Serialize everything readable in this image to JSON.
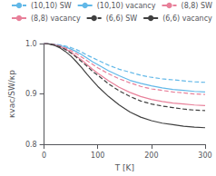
{
  "chart_data": {
    "type": "line",
    "xlabel": "T [K]",
    "ylabel": "κvac/SW/κp",
    "x": [
      0,
      5,
      10,
      20,
      30,
      40,
      50,
      60,
      70,
      80,
      90,
      100,
      120,
      140,
      160,
      180,
      200,
      220,
      240,
      260,
      280,
      300
    ],
    "xlim": [
      0,
      300
    ],
    "xticks": [
      0,
      100,
      200,
      300
    ],
    "ylim": [
      0.8,
      1.0
    ],
    "yticks": [
      0.8,
      0.9,
      {
        "value": 1.0,
        "label": "1.0"
      }
    ],
    "grid": false,
    "legend": "upper right",
    "series": [
      {
        "name": "(10,10) SW",
        "color": "#62b8e8",
        "line_style": "dashed",
        "values": [
          1.0,
          1.0,
          0.9995,
          0.9985,
          0.997,
          0.995,
          0.992,
          0.988,
          0.983,
          0.977,
          0.972,
          0.967,
          0.957,
          0.949,
          0.943,
          0.937,
          0.933,
          0.93,
          0.928,
          0.926,
          0.924,
          0.923
        ]
      },
      {
        "name": "(10,10) vacancy",
        "color": "#62b8e8",
        "line_style": "solid",
        "values": [
          1.0,
          1.0,
          0.9994,
          0.998,
          0.996,
          0.993,
          0.989,
          0.984,
          0.978,
          0.971,
          0.964,
          0.958,
          0.946,
          0.936,
          0.927,
          0.921,
          0.916,
          0.912,
          0.909,
          0.907,
          0.905,
          0.904
        ]
      },
      {
        "name": "(8,8) SW",
        "color": "#e8809a",
        "line_style": "dashed",
        "values": [
          1.0,
          1.0,
          0.9993,
          0.998,
          0.995,
          0.991,
          0.986,
          0.98,
          0.973,
          0.966,
          0.959,
          0.952,
          0.94,
          0.93,
          0.922,
          0.915,
          0.91,
          0.907,
          0.904,
          0.902,
          0.9,
          0.899
        ]
      },
      {
        "name": "(8,8) vacancy",
        "color": "#e8809a",
        "line_style": "solid",
        "values": [
          1.0,
          1.0,
          0.9992,
          0.997,
          0.994,
          0.989,
          0.983,
          0.975,
          0.967,
          0.958,
          0.949,
          0.941,
          0.926,
          0.913,
          0.903,
          0.895,
          0.889,
          0.885,
          0.882,
          0.88,
          0.878,
          0.877
        ]
      },
      {
        "name": "(6,6) SW",
        "color": "#404040",
        "line_style": "dashed",
        "values": [
          1.0,
          1.0,
          0.9992,
          0.997,
          0.993,
          0.988,
          0.981,
          0.973,
          0.964,
          0.955,
          0.945,
          0.937,
          0.92,
          0.906,
          0.895,
          0.886,
          0.88,
          0.876,
          0.873,
          0.87,
          0.868,
          0.867
        ]
      },
      {
        "name": "(6,6) vacancy",
        "color": "#404040",
        "line_style": "solid",
        "values": [
          1.0,
          1.0,
          0.999,
          0.996,
          0.991,
          0.984,
          0.975,
          0.964,
          0.952,
          0.939,
          0.927,
          0.915,
          0.895,
          0.878,
          0.864,
          0.854,
          0.847,
          0.842,
          0.839,
          0.836,
          0.834,
          0.833
        ]
      }
    ]
  }
}
